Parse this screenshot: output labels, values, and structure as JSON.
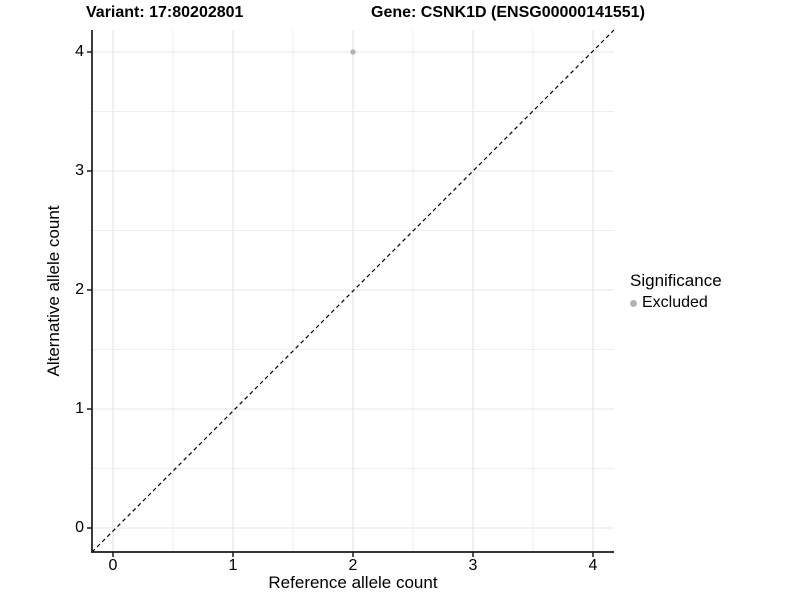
{
  "chart_data": {
    "type": "scatter",
    "title_variant": "Variant: 17:80202801",
    "title_gene": "Gene: CSNK1D (ENSG00000141551)",
    "xlabel": "Reference allele count",
    "ylabel": "Alternative allele count",
    "xlim": [
      -0.18,
      4.18
    ],
    "ylim": [
      -0.18,
      4.18
    ],
    "xticks": [
      0,
      1,
      2,
      3,
      4
    ],
    "yticks": [
      0,
      1,
      2,
      3,
      4
    ],
    "grid": {
      "on": true,
      "major_step": 1,
      "minor_step": 0.5
    },
    "reference_line": {
      "kind": "identity y = x",
      "style": "dashed",
      "color": "#000000"
    },
    "series": [
      {
        "name": "Excluded",
        "color": "#b3b3b3",
        "points": [
          {
            "x": 2,
            "y": 4
          }
        ]
      }
    ],
    "legend": {
      "title": "Significance",
      "position": "right",
      "entries": [
        {
          "label": "Excluded",
          "color": "#b3b3b3"
        }
      ]
    }
  },
  "colors": {
    "background": "#ffffff",
    "grid_major": "#e4e4e4",
    "grid_minor": "#eeeeee",
    "axis_line": "#1a1a1a",
    "tick_mark": "#1a1a1a",
    "text": "#000000",
    "point": "#b3b3b3"
  }
}
